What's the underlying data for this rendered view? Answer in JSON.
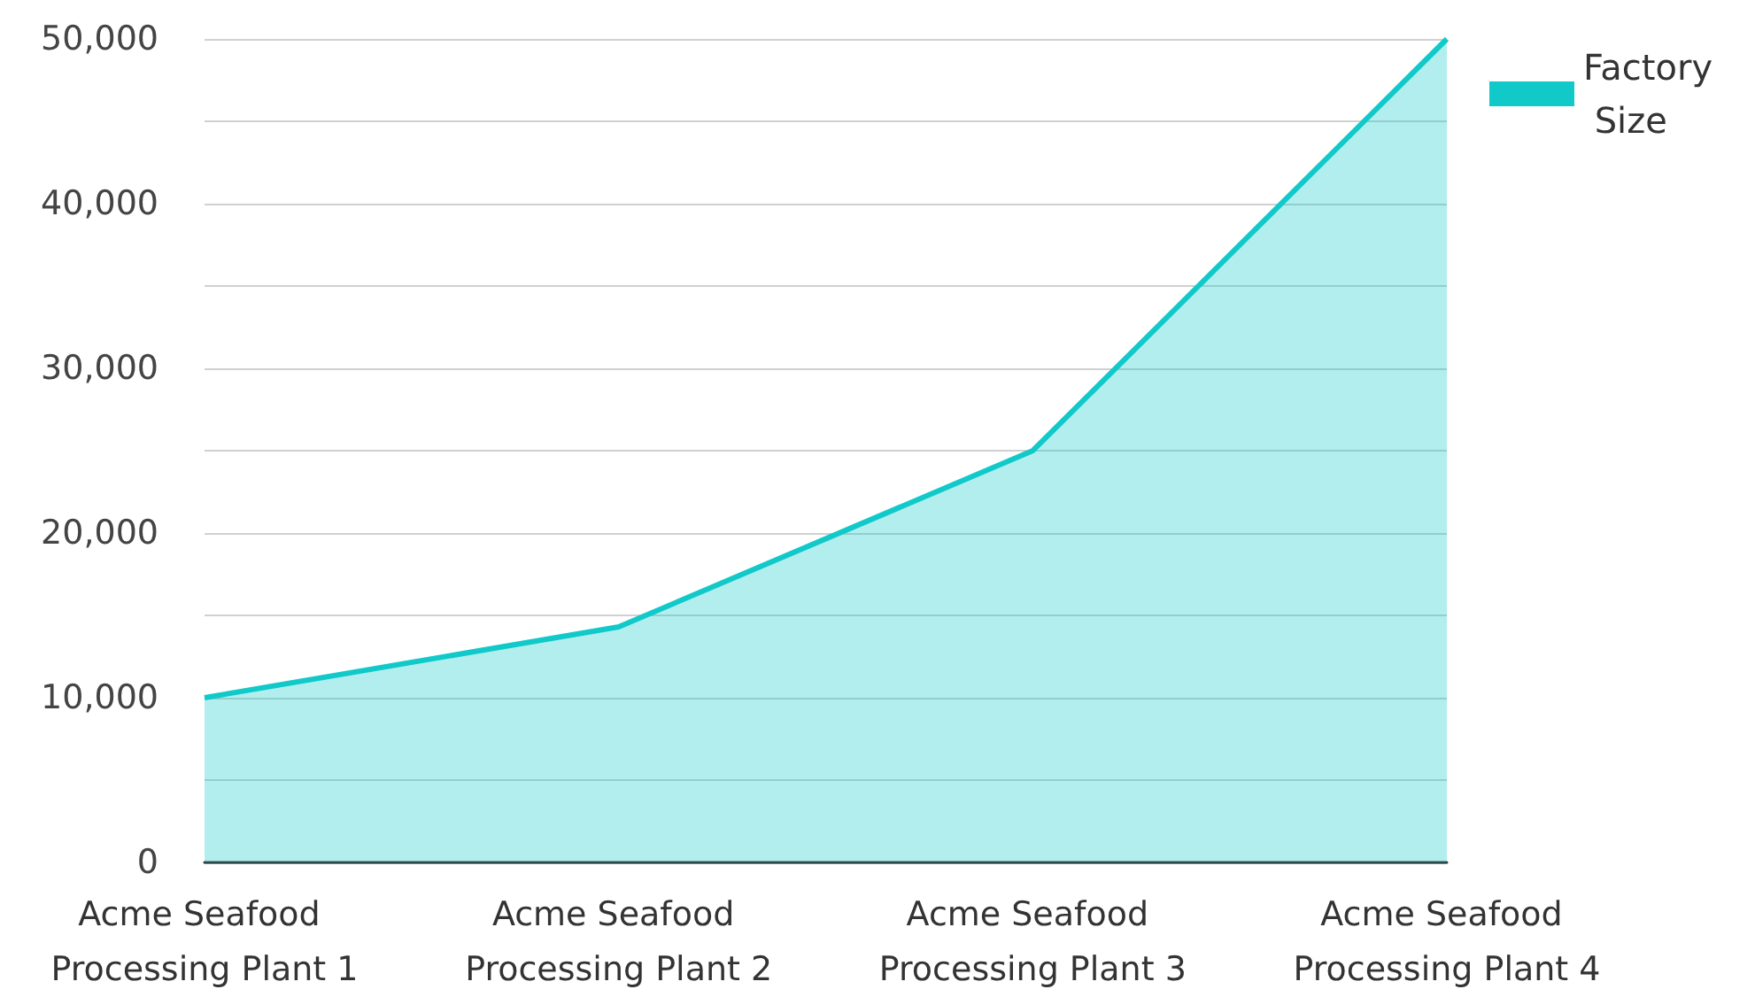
{
  "chart_data": {
    "type": "area",
    "categories": [
      "Acme Seafood Processing Plant 1",
      "Acme Seafood Processing Plant 2",
      "Acme Seafood Processing Plant 3",
      "Acme Seafood Processing Plant 4"
    ],
    "series": [
      {
        "name": "Factory Size",
        "color": "#11c9c9",
        "values": [
          10000,
          14300,
          25000,
          50000
        ]
      }
    ],
    "ylim": [
      0,
      50000
    ],
    "yticks": [
      0,
      {
        "value": 5000,
        "label": null
      },
      {
        "value": 10000,
        "label": "10,000"
      },
      {
        "value": 15000,
        "label": null
      },
      {
        "value": 20000,
        "label": "20,000"
      },
      {
        "value": 25000,
        "label": null
      },
      {
        "value": 30000,
        "label": "30,000"
      },
      {
        "value": 35000,
        "label": null
      },
      {
        "value": 40000,
        "label": "40,000"
      },
      {
        "value": 45000,
        "label": null
      },
      {
        "value": 50000,
        "label": "50,000"
      }
    ],
    "grid": "y",
    "legend": "top right",
    "marker": "none"
  }
}
